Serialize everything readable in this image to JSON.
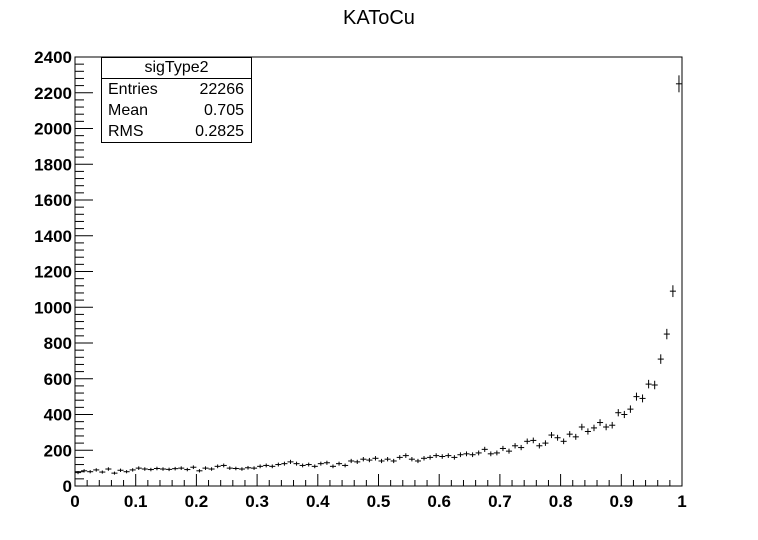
{
  "chart_data": {
    "type": "scatter",
    "style": "histogram-errorbars",
    "title": "KAToCu",
    "xlabel": "",
    "ylabel": "",
    "xlim": [
      0,
      1
    ],
    "ylim": [
      0,
      2400
    ],
    "x_ticks": [
      "0",
      "0.1",
      "0.2",
      "0.3",
      "0.4",
      "0.5",
      "0.6",
      "0.7",
      "0.8",
      "0.9",
      "1"
    ],
    "y_ticks": [
      "0",
      "200",
      "400",
      "600",
      "800",
      "1000",
      "1200",
      "1400",
      "1600",
      "1800",
      "2000",
      "2200",
      "2400"
    ],
    "grid": false,
    "legend": "top-left",
    "stats": {
      "name": "sigType2",
      "rows": [
        {
          "label": "Entries",
          "value": "22266"
        },
        {
          "label": "Mean",
          "value": "0.705"
        },
        {
          "label": "RMS",
          "value": "0.2825"
        }
      ]
    },
    "bin_width": 0.01,
    "bin_centers": [
      0.005,
      0.015,
      0.025,
      0.035,
      0.045,
      0.055,
      0.065,
      0.075,
      0.085,
      0.095,
      0.105,
      0.115,
      0.125,
      0.135,
      0.145,
      0.155,
      0.165,
      0.175,
      0.185,
      0.195,
      0.205,
      0.215,
      0.225,
      0.235,
      0.245,
      0.255,
      0.265,
      0.275,
      0.285,
      0.295,
      0.305,
      0.315,
      0.325,
      0.335,
      0.345,
      0.355,
      0.365,
      0.375,
      0.385,
      0.395,
      0.405,
      0.415,
      0.425,
      0.435,
      0.445,
      0.455,
      0.465,
      0.475,
      0.485,
      0.495,
      0.505,
      0.515,
      0.525,
      0.535,
      0.545,
      0.555,
      0.565,
      0.575,
      0.585,
      0.595,
      0.605,
      0.615,
      0.625,
      0.635,
      0.645,
      0.655,
      0.665,
      0.675,
      0.685,
      0.695,
      0.705,
      0.715,
      0.725,
      0.735,
      0.745,
      0.755,
      0.765,
      0.775,
      0.785,
      0.795,
      0.805,
      0.815,
      0.825,
      0.835,
      0.845,
      0.855,
      0.865,
      0.875,
      0.885,
      0.895,
      0.905,
      0.915,
      0.925,
      0.935,
      0.945,
      0.955,
      0.965,
      0.975,
      0.985,
      0.995
    ],
    "values": [
      75,
      85,
      80,
      90,
      78,
      95,
      72,
      88,
      80,
      90,
      100,
      95,
      92,
      98,
      95,
      93,
      97,
      100,
      92,
      105,
      85,
      100,
      95,
      110,
      115,
      100,
      98,
      95,
      102,
      100,
      110,
      115,
      110,
      120,
      125,
      135,
      125,
      115,
      120,
      110,
      125,
      130,
      110,
      125,
      115,
      140,
      135,
      150,
      145,
      155,
      140,
      150,
      140,
      160,
      170,
      150,
      140,
      155,
      160,
      170,
      165,
      170,
      160,
      175,
      180,
      175,
      185,
      205,
      180,
      185,
      210,
      195,
      225,
      215,
      250,
      255,
      225,
      240,
      285,
      270,
      250,
      290,
      275,
      330,
      305,
      325,
      355,
      330,
      340,
      410,
      400,
      430,
      500,
      490,
      570,
      565,
      710,
      850,
      1090,
      2250
    ]
  }
}
